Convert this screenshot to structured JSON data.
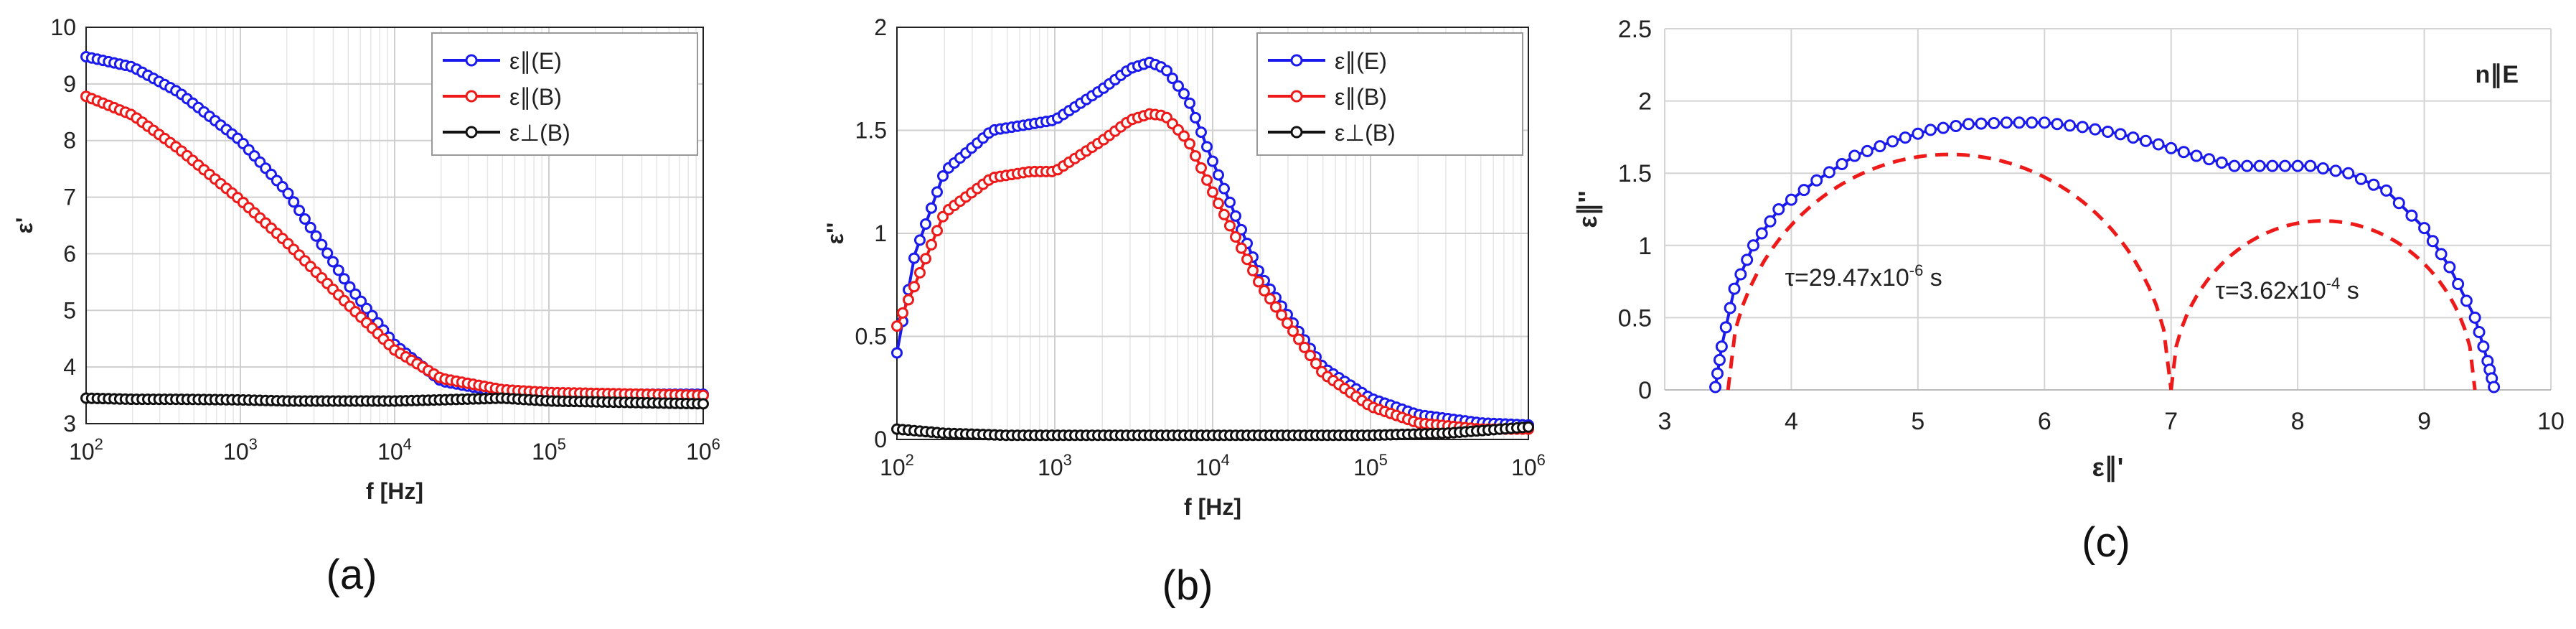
{
  "colors": {
    "blue": "#1a1aee",
    "red": "#ee1a1a",
    "black": "#111111",
    "dashed": "#ee1a1a"
  },
  "chart_data": [
    {
      "type": "line",
      "panel_label": "(a)",
      "xlabel": "f [Hz]",
      "ylabel": "ε'",
      "xscale": "log",
      "xlim": [
        100,
        1000000
      ],
      "ylim": [
        3,
        10
      ],
      "yticks": [
        3,
        4,
        5,
        6,
        7,
        8,
        9,
        10
      ],
      "ytick_labels": [
        "3",
        "4",
        "5",
        "6",
        "7",
        "8",
        "9",
        "10"
      ],
      "xticks": [
        {
          "base": "10",
          "exp": "2",
          "v": 100
        },
        {
          "base": "10",
          "exp": "3",
          "v": 1000
        },
        {
          "base": "10",
          "exp": "4",
          "v": 10000
        },
        {
          "base": "10",
          "exp": "5",
          "v": 100000
        },
        {
          "base": "10",
          "exp": "6",
          "v": 1000000
        }
      ],
      "grid": true,
      "legend_position": "top-right",
      "series": [
        {
          "name": "ε∥(E)",
          "color": "blue",
          "x": [
            100,
            200,
            400,
            1000,
            2000,
            5000,
            10000,
            20000,
            50000,
            100000,
            1000000
          ],
          "y": [
            9.48,
            9.3,
            8.85,
            8.0,
            7.1,
            5.45,
            4.4,
            3.75,
            3.55,
            3.52,
            3.52
          ]
        },
        {
          "name": "ε∥(B)",
          "color": "red",
          "x": [
            100,
            200,
            400,
            1000,
            2000,
            5000,
            10000,
            20000,
            50000,
            100000,
            1000000
          ],
          "y": [
            8.78,
            8.45,
            7.85,
            6.95,
            6.2,
            5.1,
            4.3,
            3.8,
            3.6,
            3.55,
            3.5
          ]
        },
        {
          "name": "ε⊥(B)",
          "color": "black",
          "x": [
            100,
            200,
            400,
            1000,
            2000,
            5000,
            10000,
            20000,
            50000,
            100000,
            1000000
          ],
          "y": [
            3.45,
            3.43,
            3.43,
            3.42,
            3.4,
            3.4,
            3.4,
            3.42,
            3.45,
            3.4,
            3.35
          ]
        }
      ]
    },
    {
      "type": "line",
      "panel_label": "(b)",
      "xlabel": "f [Hz]",
      "ylabel": "ε''",
      "xscale": "log",
      "xlim": [
        100,
        1000000
      ],
      "ylim": [
        0,
        2
      ],
      "yticks": [
        0,
        0.5,
        1,
        1.5,
        2
      ],
      "ytick_labels": [
        "0",
        "0.5",
        "1",
        "1.5",
        "2"
      ],
      "xticks": [
        {
          "base": "10",
          "exp": "2",
          "v": 100
        },
        {
          "base": "10",
          "exp": "3",
          "v": 1000
        },
        {
          "base": "10",
          "exp": "4",
          "v": 10000
        },
        {
          "base": "10",
          "exp": "5",
          "v": 100000
        },
        {
          "base": "10",
          "exp": "6",
          "v": 1000000
        }
      ],
      "grid": true,
      "legend_position": "top-right",
      "series": [
        {
          "name": "ε∥(E)",
          "color": "blue",
          "x": [
            100,
            130,
            200,
            400,
            700,
            1000,
            2000,
            3000,
            4000,
            5000,
            7000,
            10000,
            20000,
            50000,
            100000,
            200000,
            500000,
            1000000
          ],
          "y": [
            0.42,
            0.9,
            1.3,
            1.5,
            1.53,
            1.55,
            1.7,
            1.8,
            1.83,
            1.8,
            1.65,
            1.35,
            0.8,
            0.35,
            0.2,
            0.12,
            0.08,
            0.07
          ]
        },
        {
          "name": "ε∥(B)",
          "color": "red",
          "x": [
            100,
            130,
            200,
            400,
            700,
            1000,
            2000,
            3000,
            4000,
            5000,
            7000,
            10000,
            20000,
            50000,
            100000,
            200000,
            500000,
            1000000
          ],
          "y": [
            0.55,
            0.75,
            1.1,
            1.27,
            1.3,
            1.3,
            1.45,
            1.55,
            1.58,
            1.57,
            1.45,
            1.2,
            0.75,
            0.32,
            0.16,
            0.08,
            0.05,
            0.05
          ]
        },
        {
          "name": "ε⊥(B)",
          "color": "black",
          "x": [
            100,
            200,
            500,
            1000,
            5000,
            10000,
            100000,
            300000,
            1000000
          ],
          "y": [
            0.05,
            0.03,
            0.02,
            0.02,
            0.02,
            0.02,
            0.02,
            0.03,
            0.06
          ]
        }
      ]
    },
    {
      "type": "scatter",
      "panel_label": "(c)",
      "xlabel": "ε∥'",
      "ylabel": "ε∥''",
      "xlim": [
        3,
        10
      ],
      "ylim": [
        0,
        2.5
      ],
      "xticks": [
        3,
        4,
        5,
        6,
        7,
        8,
        9,
        10
      ],
      "xtick_labels": [
        "3",
        "4",
        "5",
        "6",
        "7",
        "8",
        "9",
        "10"
      ],
      "yticks": [
        0,
        0.5,
        1,
        1.5,
        2,
        2.5
      ],
      "ytick_labels": [
        "0",
        "0.5",
        "1",
        "1.5",
        "2",
        "2.5"
      ],
      "grid": true,
      "annotation_corner": "n∥E",
      "series": [
        {
          "name": "data",
          "color": "blue",
          "x": [
            3.4,
            3.45,
            3.55,
            3.7,
            3.9,
            4.2,
            4.5,
            4.8,
            5.1,
            5.4,
            5.7,
            6.0,
            6.3,
            6.6,
            6.9,
            7.2,
            7.5,
            7.8,
            8.1,
            8.4,
            8.7,
            9.0,
            9.2,
            9.4,
            9.5,
            9.55
          ],
          "y": [
            0.02,
            0.3,
            0.7,
            1.0,
            1.25,
            1.45,
            1.62,
            1.72,
            1.8,
            1.84,
            1.85,
            1.85,
            1.82,
            1.77,
            1.7,
            1.62,
            1.55,
            1.55,
            1.55,
            1.5,
            1.38,
            1.12,
            0.85,
            0.5,
            0.2,
            0.02
          ]
        }
      ],
      "fits": [
        {
          "label_base": "τ=29.47x10",
          "label_exp": "-6",
          "label_unit": " s",
          "color": "dashed",
          "center": 5.25,
          "radius": 1.75,
          "height": 1.63,
          "x0": 3.5,
          "x1": 7.0
        },
        {
          "label_base": "τ=3.62x10",
          "label_exp": "-4",
          "label_unit": " s",
          "color": "dashed",
          "center": 8.2,
          "radius": 1.2,
          "height": 1.17,
          "x0": 7.0,
          "x1": 9.4
        }
      ]
    }
  ]
}
